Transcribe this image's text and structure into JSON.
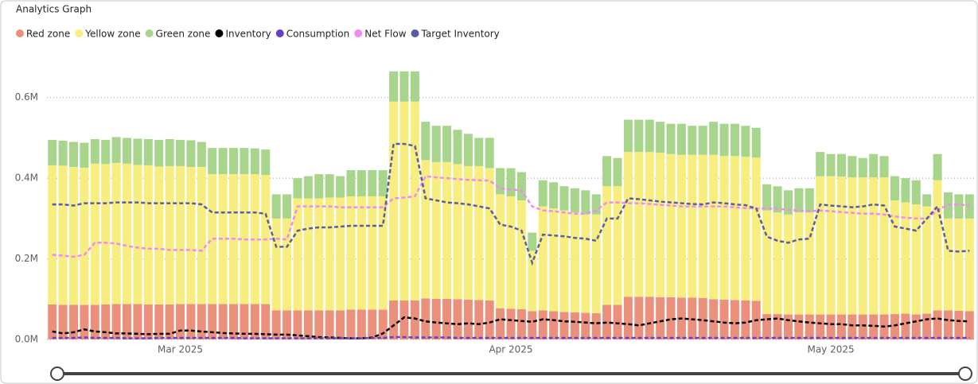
{
  "chart_data": {
    "type": "bar",
    "title": "Analytics Graph",
    "stacked": true,
    "grid": true,
    "legend": "top-left",
    "categories": [
      null,
      null,
      null,
      null,
      null,
      null,
      null,
      null,
      null,
      null,
      null,
      null,
      "Mar 2025",
      null,
      null,
      null,
      null,
      null,
      null,
      null,
      null,
      null,
      null,
      null,
      null,
      null,
      null,
      null,
      null,
      null,
      null,
      null,
      null,
      null,
      null,
      null,
      null,
      null,
      null,
      null,
      null,
      null,
      null,
      "Apr 2025",
      null,
      null,
      null,
      null,
      null,
      null,
      null,
      null,
      null,
      null,
      null,
      null,
      null,
      null,
      null,
      null,
      null,
      null,
      null,
      null,
      null,
      null,
      null,
      null,
      null,
      null,
      null,
      null,
      null,
      "May 2025",
      null,
      null,
      null,
      null,
      null,
      null,
      null,
      null,
      null,
      null,
      null,
      null,
      null
    ],
    "ylim": [
      0,
      700000
    ],
    "yticks": [
      {
        "value": 0,
        "label": "0.0M"
      },
      {
        "value": 200000,
        "label": "0.2M"
      },
      {
        "value": 400000,
        "label": "0.4M"
      },
      {
        "value": 600000,
        "label": "0.6M"
      }
    ],
    "series": [
      {
        "name": "Red zone",
        "type": "bar",
        "color": "#ec907e",
        "values": [
          87000,
          86000,
          86000,
          86000,
          86000,
          87000,
          88000,
          88000,
          88000,
          87000,
          87000,
          87000,
          88000,
          88000,
          88000,
          88000,
          88000,
          88000,
          88000,
          88000,
          88000,
          72000,
          72000,
          72000,
          72000,
          72000,
          72000,
          72000,
          74000,
          74000,
          74000,
          74000,
          97000,
          97000,
          97000,
          102000,
          101000,
          101000,
          100000,
          99000,
          98000,
          97000,
          77000,
          76000,
          75000,
          70000,
          72000,
          70000,
          68000,
          67000,
          66000,
          65000,
          86000,
          86000,
          106000,
          106000,
          106000,
          105000,
          105000,
          104000,
          104000,
          103000,
          100000,
          99000,
          98000,
          97000,
          96000,
          63000,
          63000,
          62000,
          62000,
          62000,
          62000,
          62000,
          62000,
          62000,
          62000,
          62000,
          62000,
          63000,
          64000,
          62000,
          64000,
          72000,
          72000,
          71000,
          70000
        ]
      },
      {
        "name": "Yellow zone",
        "type": "bar",
        "color": "#f7ee7f",
        "values": [
          345000,
          345000,
          342000,
          340000,
          350000,
          348000,
          350000,
          348000,
          345000,
          345000,
          342000,
          343000,
          342000,
          340000,
          340000,
          322000,
          322000,
          322000,
          322000,
          322000,
          320000,
          228000,
          228000,
          278000,
          278000,
          278000,
          280000,
          280000,
          281000,
          281000,
          281000,
          281000,
          493000,
          493000,
          493000,
          343000,
          339000,
          339000,
          335000,
          331000,
          332000,
          328000,
          283000,
          279000,
          270000,
          150000,
          258000,
          255000,
          252000,
          248000,
          244000,
          245000,
          294000,
          294000,
          359000,
          359000,
          359000,
          358000,
          355000,
          354000,
          354000,
          355000,
          358000,
          356000,
          357000,
          356000,
          355000,
          257000,
          252000,
          248000,
          253000,
          253000,
          343000,
          343000,
          342000,
          340000,
          340000,
          340000,
          340000,
          282000,
          276000,
          273000,
          266000,
          323000,
          228000,
          229000,
          230000
        ]
      },
      {
        "name": "Green zone",
        "type": "bar",
        "color": "#a8d58c",
        "values": [
          63000,
          62000,
          62000,
          62000,
          61000,
          60000,
          64000,
          64000,
          65000,
          65000,
          66000,
          67000,
          65000,
          66000,
          62000,
          65000,
          65000,
          65000,
          65000,
          64000,
          63000,
          60000,
          60000,
          50000,
          55000,
          60000,
          58000,
          53000,
          65000,
          65000,
          65000,
          65000,
          75000,
          75000,
          75000,
          95000,
          90000,
          90000,
          85000,
          80000,
          70000,
          75000,
          65000,
          70000,
          70000,
          45000,
          65000,
          65000,
          60000,
          60000,
          60000,
          50000,
          75000,
          70000,
          80000,
          80000,
          80000,
          77000,
          75000,
          77000,
          72000,
          72000,
          82000,
          80000,
          80000,
          77000,
          74000,
          65000,
          65000,
          60000,
          60000,
          60000,
          60000,
          55000,
          56000,
          53000,
          48000,
          58000,
          53000,
          60000,
          60000,
          60000,
          30000,
          65000,
          65000,
          60000,
          60000
        ]
      },
      {
        "name": "Inventory",
        "type": "line",
        "dashed": true,
        "color": "#000000",
        "values": [
          20000,
          15000,
          18000,
          25000,
          20000,
          18000,
          15000,
          15000,
          14000,
          13000,
          14000,
          14000,
          22000,
          22000,
          20000,
          18000,
          16000,
          15000,
          14000,
          14000,
          13000,
          12000,
          12000,
          10000,
          8000,
          6000,
          5000,
          4000,
          3000,
          3000,
          5000,
          15000,
          35000,
          55000,
          52000,
          45000,
          42000,
          40000,
          38000,
          40000,
          38000,
          42000,
          50000,
          48000,
          46000,
          44000,
          50000,
          48000,
          45000,
          44000,
          42000,
          40000,
          42000,
          40000,
          38000,
          35000,
          40000,
          45000,
          50000,
          52000,
          50000,
          48000,
          45000,
          42000,
          40000,
          42000,
          48000,
          50000,
          52000,
          48000,
          45000,
          42000,
          40000,
          38000,
          38000,
          35000,
          35000,
          34000,
          32000,
          35000,
          40000,
          45000,
          50000,
          52000,
          48000,
          46000,
          45000
        ]
      },
      {
        "name": "Consumption",
        "type": "line",
        "dashed": true,
        "color": "#6b3fc2",
        "values": [
          4000,
          4000,
          4000,
          5000,
          4000,
          4000,
          4000,
          3000,
          3000,
          3000,
          4000,
          4000,
          4000,
          4000,
          4000,
          4000,
          4000,
          4000,
          3000,
          3000,
          3000,
          3000,
          3000,
          3000,
          3000,
          3000,
          3000,
          3000,
          3000,
          3000,
          4000,
          4000,
          6000,
          6000,
          5000,
          5000,
          5000,
          5000,
          4000,
          4000,
          4000,
          4000,
          4000,
          4000,
          4000,
          4000,
          4000,
          4000,
          4000,
          4000,
          4000,
          4000,
          4000,
          4000,
          4000,
          4000,
          4000,
          4000,
          4000,
          4000,
          4000,
          4000,
          4000,
          4000,
          4000,
          4000,
          4000,
          4000,
          4000,
          4000,
          4000,
          4000,
          4000,
          4000,
          4000,
          4000,
          4000,
          4000,
          4000,
          4000,
          4000,
          4000,
          4000,
          4000,
          4000,
          4000,
          4000
        ]
      },
      {
        "name": "Net Flow",
        "type": "line",
        "dashed": true,
        "color": "#f08cf0",
        "values": [
          210000,
          208000,
          205000,
          210000,
          240000,
          240000,
          238000,
          232000,
          228000,
          225000,
          225000,
          222000,
          222000,
          222000,
          220000,
          250000,
          250000,
          250000,
          248000,
          248000,
          248000,
          250000,
          248000,
          330000,
          330000,
          330000,
          330000,
          328000,
          328000,
          328000,
          328000,
          328000,
          350000,
          352000,
          355000,
          405000,
          402000,
          400000,
          398000,
          396000,
          395000,
          394000,
          375000,
          372000,
          370000,
          330000,
          320000,
          318000,
          315000,
          312000,
          312000,
          320000,
          340000,
          340000,
          338000,
          338000,
          336000,
          334000,
          332000,
          330000,
          330000,
          330000,
          330000,
          330000,
          328000,
          326000,
          325000,
          325000,
          324000,
          322000,
          320000,
          318000,
          320000,
          318000,
          316000,
          314000,
          312000,
          312000,
          310000,
          305000,
          302000,
          300000,
          300000,
          320000,
          335000,
          335000,
          332000
        ]
      },
      {
        "name": "Target Inventory",
        "type": "line",
        "dashed": true,
        "color": "#5b5e9e",
        "values": [
          335000,
          335000,
          332000,
          338000,
          338000,
          338000,
          340000,
          340000,
          340000,
          338000,
          338000,
          338000,
          338000,
          338000,
          335000,
          315000,
          315000,
          315000,
          315000,
          315000,
          312000,
          230000,
          230000,
          270000,
          275000,
          278000,
          278000,
          280000,
          282000,
          282000,
          282000,
          282000,
          485000,
          485000,
          480000,
          350000,
          345000,
          340000,
          338000,
          335000,
          330000,
          325000,
          285000,
          280000,
          270000,
          190000,
          260000,
          258000,
          256000,
          252000,
          250000,
          245000,
          300000,
          300000,
          350000,
          348000,
          345000,
          342000,
          340000,
          338000,
          336000,
          335000,
          340000,
          338000,
          335000,
          333000,
          325000,
          255000,
          245000,
          240000,
          248000,
          250000,
          335000,
          332000,
          330000,
          328000,
          330000,
          335000,
          332000,
          280000,
          275000,
          270000,
          300000,
          330000,
          220000,
          218000,
          220000
        ]
      }
    ]
  }
}
